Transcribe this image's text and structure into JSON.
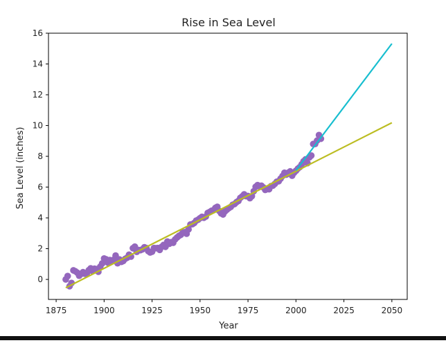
{
  "chart_data": {
    "type": "scatter",
    "title": "Rise in Sea Level",
    "xlabel": "Year",
    "ylabel": "Sea Level (inches)",
    "xlim": [
      1871,
      2058
    ],
    "ylim": [
      -1.3,
      16
    ],
    "x_ticks": [
      1875,
      1900,
      1925,
      1950,
      1975,
      2000,
      2025,
      2050
    ],
    "y_ticks": [
      0,
      2,
      4,
      6,
      8,
      10,
      12,
      14,
      16
    ],
    "grid": false,
    "colors": {
      "scatter": "#9467bd",
      "fit_all": "#bcbd22",
      "fit_recent": "#17becf"
    },
    "scatter": {
      "x": [
        1880,
        1881,
        1882,
        1883,
        1884,
        1885,
        1886,
        1887,
        1888,
        1889,
        1890,
        1891,
        1892,
        1893,
        1894,
        1895,
        1896,
        1897,
        1898,
        1899,
        1900,
        1901,
        1902,
        1903,
        1904,
        1905,
        1906,
        1907,
        1908,
        1909,
        1910,
        1911,
        1912,
        1913,
        1914,
        1915,
        1916,
        1917,
        1918,
        1919,
        1920,
        1921,
        1922,
        1923,
        1924,
        1925,
        1926,
        1927,
        1928,
        1929,
        1930,
        1931,
        1932,
        1933,
        1934,
        1935,
        1936,
        1937,
        1938,
        1939,
        1940,
        1941,
        1942,
        1943,
        1944,
        1945,
        1946,
        1947,
        1948,
        1949,
        1950,
        1951,
        1952,
        1953,
        1954,
        1955,
        1956,
        1957,
        1958,
        1959,
        1960,
        1961,
        1962,
        1963,
        1964,
        1965,
        1966,
        1967,
        1968,
        1969,
        1970,
        1971,
        1972,
        1973,
        1974,
        1975,
        1976,
        1977,
        1978,
        1979,
        1980,
        1981,
        1982,
        1983,
        1984,
        1985,
        1986,
        1987,
        1988,
        1989,
        1990,
        1991,
        1992,
        1993,
        1994,
        1995,
        1996,
        1997,
        1998,
        1999,
        2000,
        2001,
        2002,
        2003,
        2004,
        2005,
        2006,
        2007,
        2008,
        2009,
        2010,
        2011,
        2012,
        2013
      ],
      "y": [
        0.0,
        0.22,
        -0.44,
        -0.23,
        0.59,
        0.53,
        0.44,
        0.24,
        0.35,
        0.47,
        0.37,
        0.39,
        0.6,
        0.72,
        0.53,
        0.7,
        0.67,
        0.5,
        0.83,
        1.04,
        1.36,
        1.31,
        1.09,
        1.26,
        1.18,
        1.28,
        1.55,
        1.05,
        1.3,
        1.14,
        1.2,
        1.34,
        1.41,
        1.61,
        1.48,
        2.03,
        2.13,
        1.79,
        1.91,
        1.9,
        1.96,
        2.09,
        2.04,
        1.84,
        1.75,
        1.8,
        2.04,
        2.03,
        2.04,
        1.92,
        2.12,
        2.24,
        2.12,
        2.46,
        2.32,
        2.42,
        2.38,
        2.6,
        2.72,
        2.83,
        2.9,
        3.06,
        3.07,
        2.97,
        3.25,
        3.57,
        3.59,
        3.67,
        3.82,
        3.88,
        3.98,
        4.07,
        4.01,
        4.08,
        4.32,
        4.38,
        4.46,
        4.5,
        4.65,
        4.72,
        4.45,
        4.29,
        4.22,
        4.42,
        4.53,
        4.63,
        4.71,
        4.85,
        4.9,
        5.02,
        5.1,
        5.3,
        5.4,
        5.53,
        5.41,
        5.42,
        5.28,
        5.41,
        5.73,
        6.02,
        6.13,
        6.05,
        6.09,
        5.98,
        5.82,
        5.87,
        5.86,
        6.06,
        6.1,
        6.21,
        6.35,
        6.38,
        6.55,
        6.72,
        6.93,
        6.81,
        6.94,
        7.02,
        6.74,
        6.93,
        7.06,
        7.2,
        7.3,
        7.48,
        7.68,
        7.8,
        7.56,
        7.93,
        8.05,
        8.8,
        8.8,
        9.02,
        9.38,
        9.14
      ]
    },
    "series": [
      {
        "x": [
          1880,
          2050
        ],
        "y": [
          -0.54,
          10.18
        ]
      },
      {
        "x": [
          2000,
          2050
        ],
        "y": [
          7.08,
          15.32
        ]
      }
    ]
  }
}
